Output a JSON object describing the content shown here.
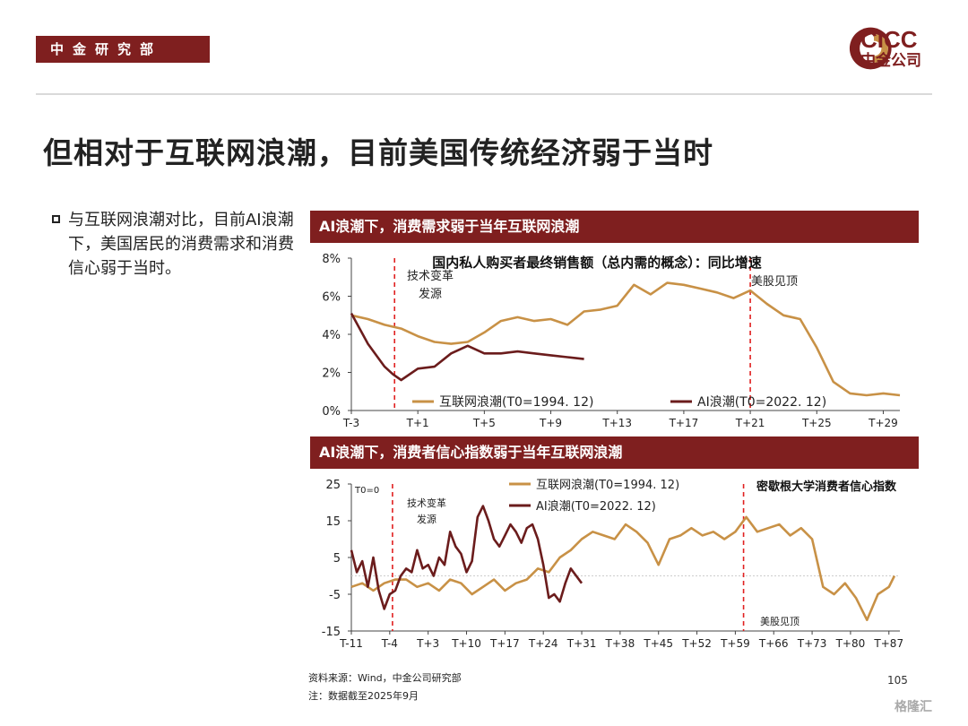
{
  "header": {
    "dept": "中金研究部",
    "logo_en": "CICC",
    "logo_cn": "中金公司"
  },
  "page_title": "但相对于互联网浪潮，目前美国传统经济弱于当时",
  "bullet": "与互联网浪潮对比，目前AI浪潮下，美国居民的消费需求和消费信心弱于当时。",
  "chart_data": [
    {
      "type": "line",
      "panel_title": "AI浪潮下，消费需求弱于当年互联网浪潮",
      "title": "国内私人购买者最终销售额（总内需的概念）：同比增速",
      "xticks": [
        "T-3",
        "T+1",
        "T+5",
        "T+9",
        "T+13",
        "T+17",
        "T+21",
        "T+25",
        "T+29"
      ],
      "yticks": [
        "0%",
        "2%",
        "4%",
        "6%",
        "8%"
      ],
      "ylim": [
        0,
        8
      ],
      "xlim": [
        -3,
        30
      ],
      "annotations": [
        {
          "text": "技术变革",
          "x": 1
        },
        {
          "text": "发源",
          "x": 1
        },
        {
          "text": "美股见顶",
          "x": 21
        }
      ],
      "vlines": [
        -0.4,
        21
      ],
      "series": [
        {
          "name": "互联网浪潮(T0=1994. 12)",
          "color": "#c89146",
          "x": [
            -3,
            -2,
            -1,
            0,
            1,
            2,
            3,
            4,
            5,
            6,
            7,
            8,
            9,
            10,
            11,
            12,
            13,
            14,
            15,
            16,
            17,
            18,
            19,
            20,
            21,
            22,
            23,
            24,
            25,
            26,
            27,
            28,
            29,
            30
          ],
          "y": [
            5.0,
            4.8,
            4.5,
            4.3,
            3.9,
            3.6,
            3.5,
            3.6,
            4.1,
            4.7,
            4.9,
            4.7,
            4.8,
            4.5,
            5.2,
            5.3,
            5.5,
            6.6,
            6.1,
            6.7,
            6.6,
            6.4,
            6.2,
            5.9,
            6.3,
            5.6,
            5.0,
            4.8,
            3.3,
            1.5,
            0.9,
            0.8,
            0.9,
            0.8
          ]
        },
        {
          "name": "AI浪潮(T0=2022. 12)",
          "color": "#6b1c1c",
          "x": [
            -3,
            -2,
            -1,
            -0.5,
            0,
            1,
            2,
            3,
            4,
            5,
            6,
            7,
            8,
            9,
            10,
            11
          ],
          "y": [
            5.1,
            3.5,
            2.3,
            1.9,
            1.6,
            2.2,
            2.3,
            3.0,
            3.4,
            3.0,
            3.0,
            3.1,
            3.0,
            2.9,
            2.8,
            2.7
          ]
        }
      ]
    },
    {
      "type": "line",
      "panel_title": "AI浪潮下，消费者信心指数弱于当年互联网浪潮",
      "title": "密歇根大学消费者信心指数",
      "xticks": [
        "T-11",
        "T-4",
        "T+3",
        "T+10",
        "T+17",
        "T+24",
        "T+31",
        "T+38",
        "T+45",
        "T+52",
        "T+59",
        "T+66",
        "T+73",
        "T+80",
        "T+87"
      ],
      "yticks": [
        "-15",
        "-5",
        "5",
        "15",
        "25"
      ],
      "ylim": [
        -15,
        25
      ],
      "xlim": [
        -11,
        89
      ],
      "annotations": [
        {
          "text": "T0=0",
          "x": -11
        },
        {
          "text": "技术变革",
          "x": 1
        },
        {
          "text": "发源",
          "x": 1
        },
        {
          "text": "美股见顶",
          "x": 61
        }
      ],
      "vlines": [
        -3.5,
        60.5
      ],
      "series": [
        {
          "name": "互联网浪潮(T0=1994. 12)",
          "color": "#c89146",
          "x": [
            -11,
            -9,
            -7,
            -5,
            -3,
            -1,
            1,
            3,
            5,
            7,
            9,
            11,
            13,
            15,
            17,
            19,
            21,
            23,
            25,
            27,
            29,
            31,
            33,
            35,
            37,
            39,
            41,
            43,
            45,
            47,
            49,
            51,
            53,
            55,
            57,
            59,
            61,
            63,
            65,
            67,
            69,
            71,
            73,
            75,
            77,
            79,
            81,
            83,
            85,
            87,
            88
          ],
          "y": [
            -3,
            -2,
            -4,
            -2,
            -1,
            -1,
            -3,
            -2,
            -4,
            -1,
            -2,
            -5,
            -3,
            -1,
            -4,
            -2,
            -1,
            2,
            1,
            5,
            7,
            10,
            12,
            11,
            10,
            14,
            12,
            9,
            3,
            10,
            11,
            13,
            11,
            12,
            10,
            12,
            16,
            12,
            13,
            14,
            11,
            13,
            10,
            -3,
            -5,
            -2,
            -6,
            -12,
            -5,
            -3,
            0
          ],
          "x_dense": true
        },
        {
          "name": "AI浪潮(T0=2022. 12)",
          "color": "#6b1c1c",
          "x": [
            -11,
            -10,
            -9,
            -8,
            -7,
            -6,
            -5,
            -4,
            -3,
            -2,
            -1,
            0,
            1,
            2,
            3,
            4,
            5,
            6,
            7,
            8,
            9,
            10,
            11,
            12,
            13,
            14,
            15,
            16,
            17,
            18,
            19,
            20,
            21,
            22,
            23,
            24,
            25,
            26,
            27,
            28,
            29,
            30,
            31
          ],
          "y": [
            7,
            1,
            4,
            -3,
            5,
            -4,
            -9,
            -5,
            -4,
            0,
            2,
            1,
            7,
            2,
            3,
            0,
            5,
            3,
            12,
            8,
            6,
            1,
            4,
            16,
            19,
            15,
            10,
            8,
            11,
            14,
            12,
            9,
            13,
            14,
            10,
            3,
            -6,
            -5,
            -7,
            -2,
            2,
            0,
            -2
          ]
        }
      ]
    }
  ],
  "footer": {
    "source": "资料来源：Wind，中金公司研究部",
    "note": "注：数据截至2025年9月",
    "page": "105",
    "watermark": "格隆汇"
  }
}
